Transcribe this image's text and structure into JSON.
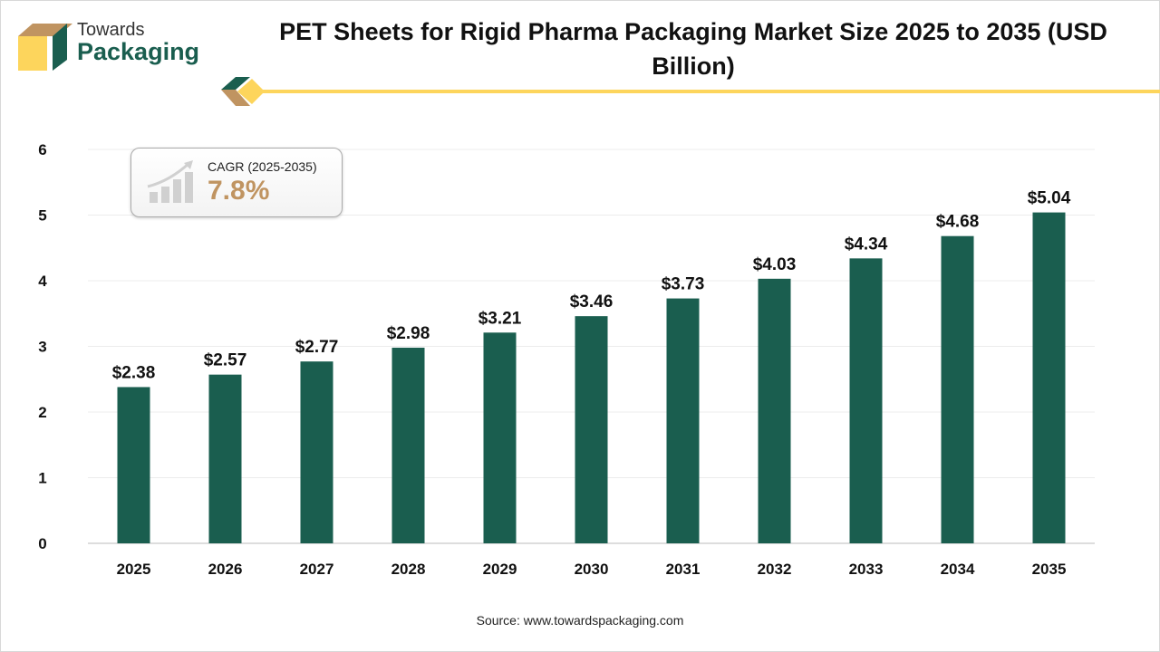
{
  "logo": {
    "line1": "Towards",
    "line2": "Packaging",
    "colors": {
      "green": "#1a5e4f",
      "tan": "#c09461",
      "yellow": "#fdd55c"
    }
  },
  "title": "PET Sheets for Rigid Pharma Packaging Market Size 2025 to 2035 (USD Billion)",
  "cagr": {
    "label": "CAGR (2025-2035)",
    "value": "7.8%",
    "icon": "growth-chart-icon"
  },
  "source": "Source: www.towardspackaging.com",
  "chart_data": {
    "type": "bar",
    "title": "PET Sheets for Rigid Pharma Packaging Market Size 2025 to 2035 (USD Billion)",
    "categories": [
      "2025",
      "2026",
      "2027",
      "2028",
      "2029",
      "2030",
      "2031",
      "2032",
      "2033",
      "2034",
      "2035"
    ],
    "values": [
      2.38,
      2.57,
      2.77,
      2.98,
      3.21,
      3.46,
      3.73,
      4.03,
      4.34,
      4.68,
      5.04
    ],
    "data_labels": [
      "$2.38",
      "$2.57",
      "$2.77",
      "$2.98",
      "$3.21",
      "$3.46",
      "$3.73",
      "$4.03",
      "$4.34",
      "$4.68",
      "$5.04"
    ],
    "ylim": [
      0,
      6
    ],
    "yticks": [
      0,
      1,
      2,
      3,
      4,
      5,
      6
    ],
    "grid": true,
    "bar_color": "#1a5e4f",
    "xlabel": "",
    "ylabel": ""
  }
}
